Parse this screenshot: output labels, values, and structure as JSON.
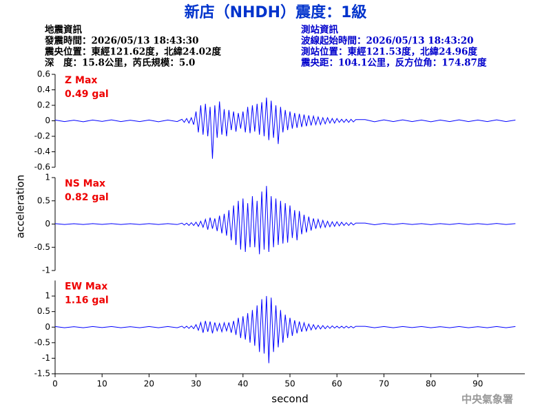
{
  "title": "新店（NHDH）震度：1級",
  "event_info": [
    "地震資訊",
    "發震時間：2026/05/13 18:43:30",
    "震央位置：東經121.62度，北緯24.02度",
    "深　度：15.8公里，芮氏規模：5.0"
  ],
  "station_info": [
    "測站資訊",
    "波線起始時間：2026/05/13 18:43:20",
    "測站位置：東經121.53度，北緯24.96度",
    "震央距：104.1公里，反方位角：174.87度"
  ],
  "ylabel": "acceleration",
  "footer": "中央氣象署",
  "chart_data": [
    {
      "type": "line",
      "label": "Z Max",
      "max_label": "0.49 gal",
      "color": "#0000ff",
      "xlim": [
        0,
        100
      ],
      "ylim": [
        -0.6,
        0.6
      ],
      "yticks": [
        -0.6,
        -0.4,
        -0.2,
        0,
        0.2,
        0.4,
        0.6
      ],
      "x": [
        0,
        2,
        4,
        6,
        8,
        10,
        12,
        14,
        16,
        18,
        20,
        22,
        24,
        26,
        27,
        27.5,
        28,
        28.5,
        29,
        29.5,
        30,
        30.5,
        31,
        31.5,
        32,
        32.5,
        33,
        33.5,
        34,
        34.5,
        35,
        35.5,
        36,
        36.5,
        37,
        37.5,
        38,
        38.5,
        39,
        39.5,
        40,
        40.5,
        41,
        41.5,
        42,
        42.5,
        43,
        43.5,
        44,
        44.5,
        45,
        45.5,
        46,
        46.5,
        47,
        47.5,
        48,
        48.5,
        49,
        49.5,
        50,
        50.5,
        51,
        51.5,
        52,
        52.5,
        53,
        53.5,
        54,
        54.5,
        55,
        55.5,
        56,
        56.5,
        57,
        57.5,
        58,
        58.5,
        59,
        59.5,
        60,
        60.5,
        61,
        61.5,
        62,
        62.5,
        63,
        63.5,
        64,
        66,
        68,
        70,
        72,
        74,
        76,
        78,
        80,
        82,
        84,
        86,
        88,
        90,
        92,
        94,
        96,
        98
      ],
      "values": [
        0.01,
        -0.01,
        0.008,
        -0.012,
        0.01,
        -0.008,
        0.012,
        -0.01,
        0.008,
        -0.01,
        0.01,
        -0.012,
        0.01,
        -0.01,
        0.02,
        -0.02,
        0.03,
        -0.03,
        0.04,
        -0.05,
        0.12,
        -0.15,
        0.2,
        -0.18,
        0.22,
        -0.2,
        0.18,
        -0.49,
        0.2,
        -0.22,
        0.25,
        -0.18,
        0.15,
        -0.2,
        0.14,
        -0.12,
        0.12,
        -0.14,
        0.1,
        -0.1,
        0.12,
        -0.15,
        0.18,
        -0.16,
        0.2,
        -0.14,
        0.22,
        -0.18,
        0.24,
        -0.2,
        0.3,
        -0.25,
        0.26,
        -0.22,
        0.2,
        -0.3,
        0.18,
        -0.15,
        0.14,
        -0.12,
        0.12,
        -0.1,
        0.1,
        -0.09,
        0.09,
        -0.08,
        0.08,
        -0.07,
        0.07,
        -0.06,
        0.06,
        -0.05,
        0.05,
        -0.05,
        0.04,
        -0.04,
        0.04,
        -0.03,
        0.03,
        -0.03,
        0.03,
        -0.02,
        0.02,
        -0.02,
        0.02,
        -0.02,
        0.02,
        -0.015,
        0.015,
        0.015,
        -0.012,
        0.012,
        -0.01,
        0.012,
        -0.01,
        0.01,
        -0.012,
        0.01,
        -0.01,
        0.012,
        -0.01,
        0.01,
        -0.01,
        0.012,
        -0.01,
        0.01
      ]
    },
    {
      "type": "line",
      "label": "NS Max",
      "max_label": "0.82 gal",
      "color": "#0000ff",
      "xlim": [
        0,
        100
      ],
      "ylim": [
        -1,
        1
      ],
      "yticks": [
        -1,
        -0.5,
        0,
        0.5,
        1
      ],
      "x": [
        0,
        2,
        4,
        6,
        8,
        10,
        12,
        14,
        16,
        18,
        20,
        22,
        24,
        26,
        27,
        27.5,
        28,
        28.5,
        29,
        29.5,
        30,
        30.5,
        31,
        31.5,
        32,
        32.5,
        33,
        33.5,
        34,
        34.5,
        35,
        35.5,
        36,
        36.5,
        37,
        37.5,
        38,
        38.5,
        39,
        39.5,
        40,
        40.5,
        41,
        41.5,
        42,
        42.5,
        43,
        43.5,
        44,
        44.5,
        45,
        45.5,
        46,
        46.5,
        47,
        47.5,
        48,
        48.5,
        49,
        49.5,
        50,
        50.5,
        51,
        51.5,
        52,
        52.5,
        53,
        53.5,
        54,
        54.5,
        55,
        55.5,
        56,
        56.5,
        57,
        57.5,
        58,
        58.5,
        59,
        59.5,
        60,
        60.5,
        61,
        61.5,
        62,
        62.5,
        63,
        63.5,
        64,
        66,
        68,
        70,
        72,
        74,
        76,
        78,
        80,
        82,
        84,
        86,
        88,
        90,
        92,
        94,
        96,
        98
      ],
      "values": [
        0.01,
        -0.01,
        0.008,
        -0.01,
        0.01,
        -0.008,
        0.01,
        -0.01,
        0.008,
        -0.01,
        0.01,
        -0.01,
        0.01,
        -0.01,
        0.02,
        -0.02,
        0.02,
        -0.03,
        0.03,
        -0.03,
        0.04,
        -0.05,
        0.06,
        -0.07,
        0.1,
        -0.12,
        0.14,
        -0.1,
        0.12,
        -0.15,
        0.18,
        -0.2,
        0.22,
        -0.25,
        0.3,
        -0.35,
        0.4,
        -0.45,
        0.5,
        -0.55,
        0.55,
        -0.6,
        0.45,
        -0.5,
        0.6,
        -0.5,
        0.5,
        -0.65,
        0.7,
        -0.55,
        0.82,
        -0.6,
        0.6,
        -0.5,
        0.55,
        -0.45,
        0.5,
        -0.42,
        0.45,
        -0.4,
        0.4,
        -0.3,
        0.3,
        -0.35,
        0.28,
        -0.22,
        0.2,
        -0.18,
        0.16,
        -0.14,
        0.12,
        -0.1,
        0.1,
        -0.08,
        0.08,
        -0.07,
        0.06,
        -0.06,
        0.05,
        -0.05,
        0.05,
        -0.04,
        0.04,
        -0.03,
        0.03,
        -0.03,
        0.03,
        -0.02,
        0.02,
        0.02,
        -0.015,
        0.012,
        -0.01,
        0.012,
        -0.01,
        0.01,
        -0.012,
        0.01,
        -0.01,
        0.012,
        -0.01,
        0.01,
        -0.01,
        0.012,
        -0.01,
        0.01
      ]
    },
    {
      "type": "line",
      "label": "EW Max",
      "max_label": "1.16 gal",
      "color": "#0000ff",
      "xlim": [
        0,
        100
      ],
      "ylim": [
        -1.5,
        1.5
      ],
      "yticks": [
        -1.5,
        -1,
        -0.5,
        0,
        0.5,
        1
      ],
      "xticks": [
        0,
        10,
        20,
        30,
        40,
        50,
        60,
        70,
        80,
        90
      ],
      "xlabel": "second",
      "x": [
        0,
        2,
        4,
        6,
        8,
        10,
        12,
        14,
        16,
        18,
        20,
        22,
        24,
        26,
        27,
        27.5,
        28,
        28.5,
        29,
        29.5,
        30,
        30.5,
        31,
        31.5,
        32,
        32.5,
        33,
        33.5,
        34,
        34.5,
        35,
        35.5,
        36,
        36.5,
        37,
        37.5,
        38,
        38.5,
        39,
        39.5,
        40,
        40.5,
        41,
        41.5,
        42,
        42.5,
        43,
        43.5,
        44,
        44.5,
        45,
        45.5,
        46,
        46.5,
        47,
        47.5,
        48,
        48.5,
        49,
        49.5,
        50,
        50.5,
        51,
        51.5,
        52,
        52.5,
        53,
        53.5,
        54,
        54.5,
        55,
        55.5,
        56,
        56.5,
        57,
        57.5,
        58,
        58.5,
        59,
        59.5,
        60,
        60.5,
        61,
        61.5,
        62,
        62.5,
        63,
        63.5,
        64,
        66,
        68,
        70,
        72,
        74,
        76,
        78,
        80,
        82,
        84,
        86,
        88,
        90,
        92,
        94,
        96,
        98
      ],
      "values": [
        0.02,
        -0.02,
        0.015,
        -0.02,
        0.02,
        -0.015,
        0.02,
        -0.02,
        0.015,
        -0.02,
        0.02,
        -0.02,
        0.02,
        -0.02,
        0.03,
        -0.03,
        0.03,
        -0.04,
        0.04,
        -0.05,
        0.08,
        -0.1,
        0.15,
        -0.18,
        0.2,
        -0.15,
        0.18,
        -0.2,
        0.15,
        -0.12,
        0.12,
        -0.15,
        0.14,
        -0.12,
        0.15,
        -0.18,
        0.2,
        -0.25,
        0.3,
        -0.35,
        0.35,
        -0.4,
        0.45,
        -0.5,
        0.55,
        -0.6,
        0.7,
        -0.8,
        0.9,
        -0.85,
        1.0,
        -1.16,
        0.95,
        -0.8,
        0.7,
        -0.65,
        0.55,
        -0.5,
        0.4,
        -0.35,
        0.3,
        -0.28,
        0.22,
        -0.2,
        0.18,
        -0.15,
        0.14,
        -0.12,
        0.1,
        -0.09,
        0.08,
        -0.07,
        0.06,
        -0.06,
        0.05,
        -0.05,
        0.04,
        -0.04,
        0.04,
        -0.03,
        0.03,
        -0.03,
        0.03,
        -0.03,
        0.03,
        -0.025,
        0.025,
        -0.025,
        0.025,
        0.025,
        -0.02,
        0.02,
        -0.02,
        0.02,
        -0.015,
        0.02,
        -0.02,
        0.015,
        -0.02,
        0.02,
        -0.02,
        0.015,
        -0.02,
        0.02,
        -0.02,
        0.02
      ]
    }
  ]
}
